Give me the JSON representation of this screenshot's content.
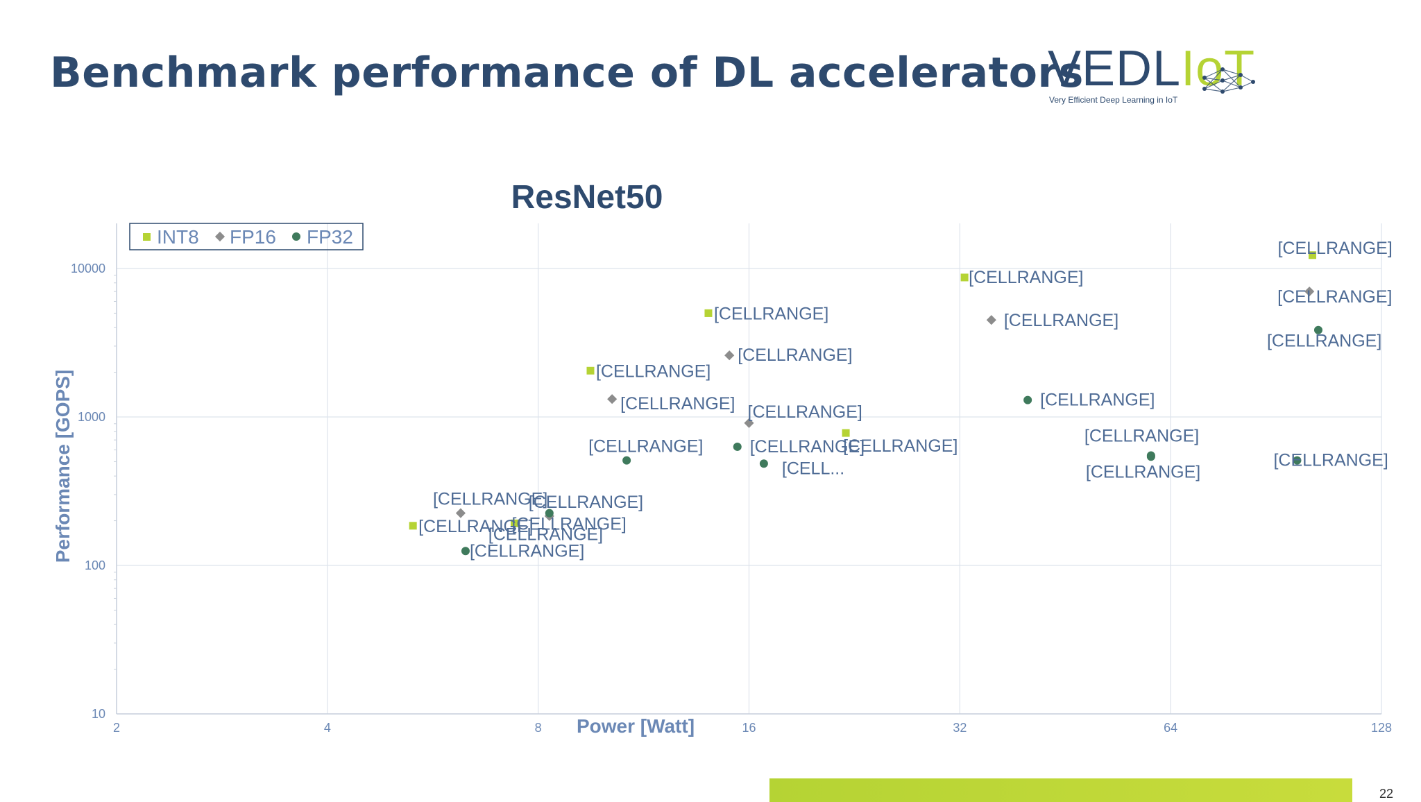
{
  "slide": {
    "title": "Benchmark performance of DL accelerators",
    "page_number": "22"
  },
  "logo": {
    "word_part1": "VEDL",
    "word_part2": "IoT",
    "tagline": "Very Efficient Deep Learning in IoT"
  },
  "colors": {
    "title": "#2e4a6e",
    "int8": "#b5d334",
    "fp16": "#8c8c8c",
    "fp32": "#3f7a5c",
    "label_text": "#4e6b95",
    "axis_text": "#6b88b5"
  },
  "chart_data": {
    "type": "scatter",
    "title": "ResNet50",
    "xlabel": "Power [Watt]",
    "ylabel": "Performance [GOPS]",
    "x_scale": "log2",
    "y_scale": "log10",
    "xlim": [
      2,
      128
    ],
    "ylim": [
      10,
      20000
    ],
    "x_ticks": [
      2,
      4,
      8,
      16,
      32,
      64,
      128
    ],
    "y_ticks": [
      10,
      100,
      1000,
      10000
    ],
    "x_tick_labels": [
      "2",
      "4",
      "8",
      "16",
      "32",
      "64",
      "128"
    ],
    "y_tick_labels": [
      "10",
      "100",
      "1000",
      "10000"
    ],
    "grid": true,
    "legend_position": "top-left",
    "series": [
      {
        "name": "INT8",
        "marker": "square",
        "points": [
          {
            "x": 5.3,
            "y": 185,
            "label": "[CELLRANGE]"
          },
          {
            "x": 7.4,
            "y": 192,
            "label": "[CELLRANGE]"
          },
          {
            "x": 9.5,
            "y": 2050,
            "label": "[CELLRANGE]"
          },
          {
            "x": 14.0,
            "y": 5000,
            "label": "[CELLRANGE]"
          },
          {
            "x": 22.0,
            "y": 780,
            "label": "[CELLRANGE]"
          },
          {
            "x": 32.5,
            "y": 8700,
            "label": "[CELLRANGE]"
          },
          {
            "x": 102,
            "y": 12300,
            "label": "[CELLRANGE]"
          }
        ]
      },
      {
        "name": "FP16",
        "marker": "diamond",
        "points": [
          {
            "x": 6.2,
            "y": 225,
            "label": "[CELLRANGE]"
          },
          {
            "x": 8.3,
            "y": 215,
            "label": "[CELLRANGE]"
          },
          {
            "x": 10.2,
            "y": 1320,
            "label": "[CELLRANGE]"
          },
          {
            "x": 15.0,
            "y": 2600,
            "label": "[CELLRANGE]"
          },
          {
            "x": 16.0,
            "y": 910,
            "label": "[CELLRANGE]"
          },
          {
            "x": 35.5,
            "y": 4500,
            "label": "[CELLRANGE]"
          },
          {
            "x": 101,
            "y": 7000,
            "label": "[CELLRANGE]"
          }
        ]
      },
      {
        "name": "FP32",
        "marker": "circle",
        "points": [
          {
            "x": 6.3,
            "y": 125,
            "label": "[CELLRANGE]"
          },
          {
            "x": 8.3,
            "y": 225,
            "label": "[CELLRANGE]"
          },
          {
            "x": 10.7,
            "y": 510,
            "label": "[CELLRANGE]"
          },
          {
            "x": 15.4,
            "y": 630,
            "label": "[CELLRANGE]"
          },
          {
            "x": 16.8,
            "y": 485,
            "label": "[CELL..."
          },
          {
            "x": 40.0,
            "y": 1300,
            "label": "[CELLRANGE]"
          },
          {
            "x": 60.0,
            "y": 550,
            "label": "[CELLRANGE]"
          },
          {
            "x": 97,
            "y": 510,
            "label": "[CELLRANGE]"
          },
          {
            "x": 104,
            "y": 3850,
            "label": "[CELLRANGE]"
          },
          {
            "x": 60.0,
            "y": 540,
            "label": "[CELLRANGE]"
          }
        ]
      }
    ]
  }
}
